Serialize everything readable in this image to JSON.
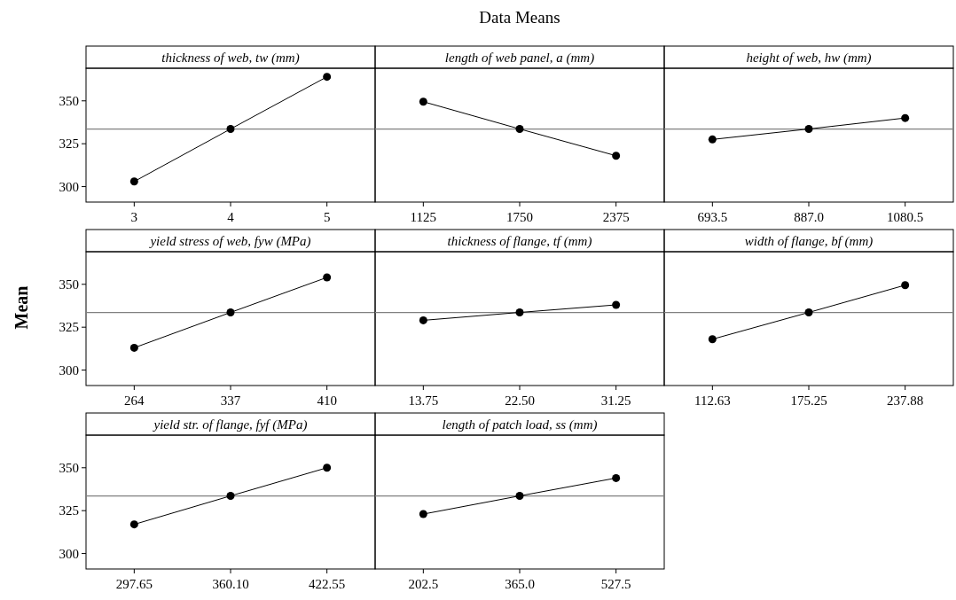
{
  "chart_data": [
    {
      "type": "line",
      "title": "thickness of web, tw (mm)",
      "ylabel": "Mean",
      "annotations": [
        "Data Means"
      ],
      "categories": [
        "3",
        "4",
        "5"
      ],
      "values": [
        303,
        333.6,
        364
      ],
      "color": "#000000",
      "marker": "circle",
      "ylim": [
        291,
        369
      ],
      "yticks": [
        300,
        325,
        350
      ],
      "ref_lines": [
        {
          "axis": "y",
          "value": 333.6,
          "color": "#808080"
        }
      ],
      "grid": false
    },
    {
      "type": "line",
      "title": "length of web panel, a (mm)",
      "categories": [
        "1125",
        "1750",
        "2375"
      ],
      "values": [
        349.5,
        333.6,
        318
      ],
      "color": "#000000",
      "marker": "circle",
      "ylim": [
        291,
        369
      ],
      "yticks": [
        300,
        325,
        350
      ],
      "tick_labels": "x",
      "ref_lines": [
        {
          "axis": "y",
          "value": 333.6,
          "color": "#808080"
        }
      ],
      "grid": false
    },
    {
      "type": "line",
      "title": "height of web, hw (mm)",
      "categories": [
        "693.5",
        "887.0",
        "1080.5"
      ],
      "values": [
        327.5,
        333.6,
        340
      ],
      "color": "#000000",
      "marker": "circle",
      "ylim": [
        291,
        369
      ],
      "yticks": [
        300,
        325,
        350
      ],
      "tick_labels": "x",
      "ref_lines": [
        {
          "axis": "y",
          "value": 333.6,
          "color": "#808080"
        }
      ],
      "grid": false
    },
    {
      "type": "line",
      "title": "yield stress of web, fyw (MPa)",
      "categories": [
        "264",
        "337",
        "410"
      ],
      "values": [
        313,
        333.6,
        354
      ],
      "color": "#000000",
      "marker": "circle",
      "ylim": [
        291,
        369
      ],
      "yticks": [
        300,
        325,
        350
      ],
      "ref_lines": [
        {
          "axis": "y",
          "value": 333.6,
          "color": "#808080"
        }
      ],
      "grid": false
    },
    {
      "type": "line",
      "title": "thickness of flange, tf (mm)",
      "categories": [
        "13.75",
        "22.50",
        "31.25"
      ],
      "values": [
        329,
        333.6,
        338
      ],
      "color": "#000000",
      "marker": "circle",
      "ylim": [
        291,
        369
      ],
      "yticks": [
        300,
        325,
        350
      ],
      "tick_labels": "x",
      "ref_lines": [
        {
          "axis": "y",
          "value": 333.6,
          "color": "#808080"
        }
      ],
      "grid": false
    },
    {
      "type": "line",
      "title": "width of flange, bf (mm)",
      "categories": [
        "112.63",
        "175.25",
        "237.88"
      ],
      "values": [
        318,
        333.6,
        349.5
      ],
      "color": "#000000",
      "marker": "circle",
      "ylim": [
        291,
        369
      ],
      "yticks": [
        300,
        325,
        350
      ],
      "tick_labels": "x",
      "ref_lines": [
        {
          "axis": "y",
          "value": 333.6,
          "color": "#808080"
        }
      ],
      "grid": false
    },
    {
      "type": "line",
      "title": "yield str. of flange, fyf (MPa)",
      "categories": [
        "297.65",
        "360.10",
        "422.55"
      ],
      "values": [
        317,
        333.6,
        350
      ],
      "color": "#000000",
      "marker": "circle",
      "ylim": [
        291,
        369
      ],
      "yticks": [
        300,
        325,
        350
      ],
      "ref_lines": [
        {
          "axis": "y",
          "value": 333.6,
          "color": "#808080"
        }
      ],
      "grid": false
    },
    {
      "type": "line",
      "title": "length of patch load, ss (mm)",
      "categories": [
        "202.5",
        "365.0",
        "527.5"
      ],
      "values": [
        323,
        333.6,
        344
      ],
      "color": "#000000",
      "marker": "circle",
      "ylim": [
        291,
        369
      ],
      "yticks": [
        300,
        325,
        350
      ],
      "tick_labels": "x",
      "ref_lines": [
        {
          "axis": "y",
          "value": 333.6,
          "color": "#808080"
        }
      ],
      "grid": false
    }
  ]
}
